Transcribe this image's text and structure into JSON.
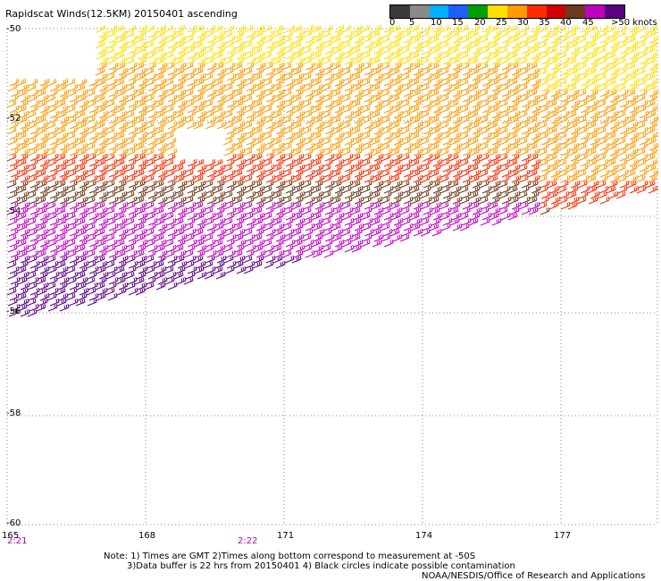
{
  "title": "Rapidscat Winds(12.5KM) 20150401 ascending",
  "legend": {
    "labels": [
      "0",
      "5",
      "10",
      "15",
      "20",
      "25",
      "30",
      "35",
      "40",
      "45",
      ">50 knots"
    ],
    "colors": [
      "#3a3a3a",
      "#8a8a8a",
      "#00b0ff",
      "#1f5fff",
      "#00a000",
      "#ffdf00",
      "#ff9a00",
      "#ff2a00",
      "#d00000",
      "#6b3a1a",
      "#c000c0",
      "#5a0080"
    ]
  },
  "latitude_labels": [
    "-50",
    "-52",
    "-54",
    "-56",
    "-58",
    "-60"
  ],
  "longitude_labels": [
    "165",
    "168",
    "171",
    "174",
    "177"
  ],
  "time_labels": [
    "2:21",
    "2:22"
  ],
  "notes": [
    "Note: 1) Times are GMT 2)Times along bottom correspond to measurement at -50S",
    "3)Data buffer is 22 hrs from 20150401 4) Black circles indicate possible contamination",
    "NOAA/NESDIS/Office of Research and Applications"
  ]
}
